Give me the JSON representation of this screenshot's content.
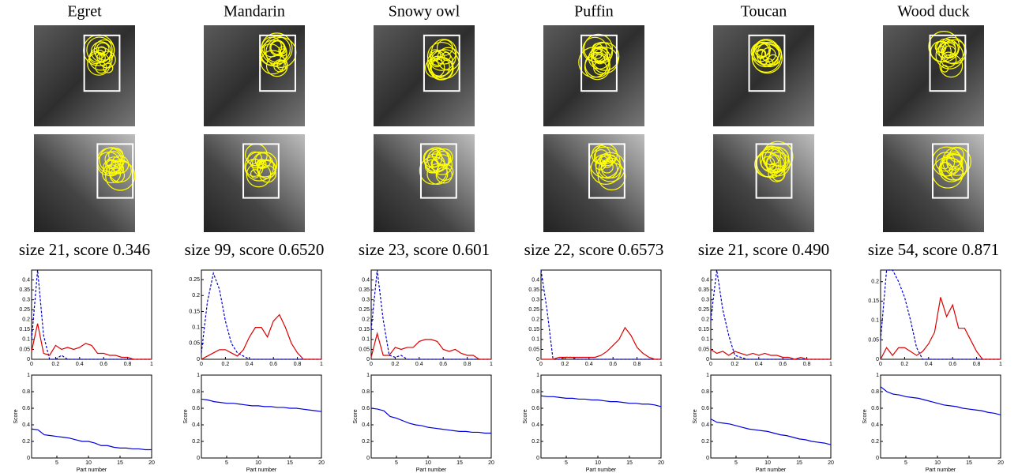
{
  "panels": [
    {
      "title": "Egret",
      "caption": "size 21, score 0.346"
    },
    {
      "title": "Mandarin",
      "caption": "size 99, score 0.6520"
    },
    {
      "title": "Snowy owl",
      "caption": "size 23, score 0.601"
    },
    {
      "title": "Puffin",
      "caption": "size 22, score 0.6573"
    },
    {
      "title": "Toucan",
      "caption": "size 21, score 0.490"
    },
    {
      "title": "Wood duck",
      "caption": "size 54, score 0.871"
    }
  ],
  "chart_data": [
    {
      "type": "line",
      "x": [
        0,
        0.05,
        0.1,
        0.15,
        0.2,
        0.25,
        0.3,
        0.35,
        0.4,
        0.45,
        0.5,
        0.55,
        0.6,
        0.65,
        0.7,
        0.75,
        0.8,
        0.85,
        0.9,
        0.95,
        1
      ],
      "xlim": [
        0,
        1
      ],
      "xticks": [
        0,
        0.2,
        0.4,
        0.6,
        0.8,
        1
      ],
      "ylim": [
        0,
        0.45
      ],
      "yticks": [
        0,
        0.05,
        0.1,
        0.15,
        0.2,
        0.25,
        0.3,
        0.35,
        0.4
      ],
      "series": [
        {
          "color": "#0000cc",
          "dash": true,
          "values": [
            0.1,
            0.45,
            0.12,
            0,
            0,
            0.02,
            0,
            0,
            0,
            0,
            0,
            0,
            0,
            0,
            0,
            0,
            0,
            0,
            0,
            0,
            0
          ]
        },
        {
          "color": "#dd0000",
          "values": [
            0.04,
            0.18,
            0.03,
            0.02,
            0.07,
            0.05,
            0.06,
            0.05,
            0.06,
            0.08,
            0.07,
            0.03,
            0.03,
            0.02,
            0.02,
            0.01,
            0.01,
            0,
            0,
            0,
            0
          ]
        }
      ]
    },
    {
      "type": "line",
      "x": [
        1,
        2,
        3,
        4,
        5,
        6,
        7,
        8,
        9,
        10,
        11,
        12,
        13,
        14,
        15,
        16,
        17,
        18,
        19,
        20
      ],
      "xlim": [
        1,
        20
      ],
      "xticks": [
        5,
        10,
        15,
        20
      ],
      "ylim": [
        0,
        1
      ],
      "yticks": [
        0,
        0.2,
        0.4,
        0.6,
        0.8,
        1
      ],
      "x_label": "Part number",
      "y_label": "Score",
      "series": [
        {
          "color": "#0000dd",
          "values": [
            0.35,
            0.34,
            0.28,
            0.27,
            0.26,
            0.25,
            0.24,
            0.22,
            0.2,
            0.2,
            0.18,
            0.15,
            0.15,
            0.13,
            0.12,
            0.12,
            0.11,
            0.11,
            0.1,
            0.1
          ]
        }
      ]
    },
    {
      "type": "line",
      "x": [
        0,
        0.05,
        0.1,
        0.15,
        0.2,
        0.25,
        0.3,
        0.35,
        0.4,
        0.45,
        0.5,
        0.55,
        0.6,
        0.65,
        0.7,
        0.75,
        0.8,
        0.85,
        0.9,
        0.95,
        1
      ],
      "xlim": [
        0,
        1
      ],
      "xticks": [
        0,
        0.2,
        0.4,
        0.6,
        0.8,
        1
      ],
      "ylim": [
        0,
        0.28
      ],
      "yticks": [
        0,
        0.05,
        0.1,
        0.15,
        0.2,
        0.25
      ],
      "series": [
        {
          "color": "#0000cc",
          "dash": true,
          "values": [
            0.02,
            0.18,
            0.27,
            0.22,
            0.12,
            0.05,
            0.02,
            0.01,
            0,
            0,
            0,
            0,
            0,
            0,
            0,
            0,
            0,
            0,
            0,
            0,
            0
          ]
        },
        {
          "color": "#dd0000",
          "values": [
            0,
            0.01,
            0.02,
            0.03,
            0.03,
            0.02,
            0.01,
            0.03,
            0.07,
            0.1,
            0.1,
            0.07,
            0.12,
            0.14,
            0.1,
            0.05,
            0.02,
            0,
            0,
            0,
            0
          ]
        }
      ]
    },
    {
      "type": "line",
      "x": [
        1,
        2,
        3,
        4,
        5,
        6,
        7,
        8,
        9,
        10,
        11,
        12,
        13,
        14,
        15,
        16,
        17,
        18,
        19,
        20
      ],
      "xlim": [
        1,
        20
      ],
      "xticks": [
        5,
        10,
        15,
        20
      ],
      "ylim": [
        0,
        1
      ],
      "yticks": [
        0,
        0.2,
        0.4,
        0.6,
        0.8,
        1
      ],
      "x_label": "Part number",
      "y_label": "Score",
      "series": [
        {
          "color": "#0000dd",
          "values": [
            0.71,
            0.7,
            0.68,
            0.67,
            0.66,
            0.66,
            0.65,
            0.64,
            0.63,
            0.63,
            0.62,
            0.62,
            0.61,
            0.61,
            0.6,
            0.6,
            0.59,
            0.58,
            0.57,
            0.56
          ]
        }
      ]
    },
    {
      "type": "line",
      "x": [
        0,
        0.05,
        0.1,
        0.15,
        0.2,
        0.25,
        0.3,
        0.35,
        0.4,
        0.45,
        0.5,
        0.55,
        0.6,
        0.65,
        0.7,
        0.75,
        0.8,
        0.85,
        0.9,
        0.95,
        1
      ],
      "xlim": [
        0,
        1
      ],
      "xticks": [
        0,
        0.2,
        0.4,
        0.6,
        0.8,
        1
      ],
      "ylim": [
        0,
        0.45
      ],
      "yticks": [
        0,
        0.05,
        0.1,
        0.15,
        0.2,
        0.25,
        0.3,
        0.35,
        0.4
      ],
      "series": [
        {
          "color": "#0000cc",
          "dash": true,
          "values": [
            0.15,
            0.45,
            0.2,
            0.02,
            0.01,
            0.02,
            0,
            0,
            0,
            0,
            0,
            0,
            0,
            0,
            0,
            0,
            0,
            0,
            0,
            0,
            0
          ]
        },
        {
          "color": "#dd0000",
          "values": [
            0.01,
            0.13,
            0.02,
            0.02,
            0.06,
            0.05,
            0.06,
            0.06,
            0.09,
            0.1,
            0.1,
            0.09,
            0.05,
            0.04,
            0.05,
            0.03,
            0.02,
            0.02,
            0,
            0,
            0
          ]
        }
      ]
    },
    {
      "type": "line",
      "x": [
        1,
        2,
        3,
        4,
        5,
        6,
        7,
        8,
        9,
        10,
        11,
        12,
        13,
        14,
        15,
        16,
        17,
        18,
        19,
        20
      ],
      "xlim": [
        1,
        20
      ],
      "xticks": [
        5,
        10,
        15,
        20
      ],
      "ylim": [
        0,
        1
      ],
      "yticks": [
        0,
        0.2,
        0.4,
        0.6,
        0.8,
        1
      ],
      "x_label": "Part number",
      "y_label": "Score",
      "series": [
        {
          "color": "#0000dd",
          "values": [
            0.6,
            0.59,
            0.57,
            0.5,
            0.48,
            0.45,
            0.42,
            0.4,
            0.39,
            0.37,
            0.36,
            0.35,
            0.34,
            0.33,
            0.32,
            0.32,
            0.31,
            0.31,
            0.3,
            0.3
          ]
        }
      ]
    },
    {
      "type": "line",
      "x": [
        0,
        0.05,
        0.1,
        0.15,
        0.2,
        0.25,
        0.3,
        0.35,
        0.4,
        0.45,
        0.5,
        0.55,
        0.6,
        0.65,
        0.7,
        0.75,
        0.8,
        0.85,
        0.9,
        0.95,
        1
      ],
      "xlim": [
        0,
        1
      ],
      "xticks": [
        0,
        0.2,
        0.4,
        0.6,
        0.8,
        1
      ],
      "ylim": [
        0,
        0.45
      ],
      "yticks": [
        0,
        0.05,
        0.1,
        0.15,
        0.2,
        0.25,
        0.3,
        0.35,
        0.4
      ],
      "series": [
        {
          "color": "#0000cc",
          "dash": true,
          "values": [
            0.45,
            0.25,
            0,
            0,
            0.01,
            0.01,
            0,
            0,
            0,
            0,
            0,
            0,
            0,
            0,
            0,
            0,
            0,
            0,
            0,
            0,
            0
          ]
        },
        {
          "color": "#dd0000",
          "values": [
            0,
            0,
            0,
            0.01,
            0.01,
            0.01,
            0.01,
            0.01,
            0.01,
            0.01,
            0.02,
            0.04,
            0.07,
            0.1,
            0.16,
            0.12,
            0.06,
            0.03,
            0.01,
            0,
            0
          ]
        }
      ]
    },
    {
      "type": "line",
      "x": [
        1,
        2,
        3,
        4,
        5,
        6,
        7,
        8,
        9,
        10,
        11,
        12,
        13,
        14,
        15,
        16,
        17,
        18,
        19,
        20
      ],
      "xlim": [
        1,
        20
      ],
      "xticks": [
        5,
        10,
        15,
        20
      ],
      "ylim": [
        0,
        1
      ],
      "yticks": [
        0,
        0.2,
        0.4,
        0.6,
        0.8,
        1
      ],
      "x_label": "Part number",
      "y_label": "Score",
      "series": [
        {
          "color": "#0000dd",
          "values": [
            0.75,
            0.74,
            0.74,
            0.73,
            0.72,
            0.72,
            0.71,
            0.71,
            0.7,
            0.7,
            0.69,
            0.68,
            0.68,
            0.67,
            0.66,
            0.66,
            0.65,
            0.65,
            0.64,
            0.62
          ]
        }
      ]
    },
    {
      "type": "line",
      "x": [
        0,
        0.05,
        0.1,
        0.15,
        0.2,
        0.25,
        0.3,
        0.35,
        0.4,
        0.45,
        0.5,
        0.55,
        0.6,
        0.65,
        0.7,
        0.75,
        0.8,
        0.85,
        0.9,
        0.95,
        1
      ],
      "xlim": [
        0,
        1
      ],
      "xticks": [
        0,
        0.2,
        0.4,
        0.6,
        0.8,
        1
      ],
      "ylim": [
        0,
        0.45
      ],
      "yticks": [
        0,
        0.05,
        0.1,
        0.15,
        0.2,
        0.25,
        0.3,
        0.35,
        0.4
      ],
      "series": [
        {
          "color": "#0000cc",
          "dash": true,
          "values": [
            0.2,
            0.45,
            0.25,
            0.12,
            0.02,
            0.01,
            0,
            0,
            0,
            0,
            0,
            0,
            0,
            0,
            0,
            0,
            0,
            0,
            0,
            0,
            0
          ]
        },
        {
          "color": "#dd0000",
          "values": [
            0.05,
            0.03,
            0.04,
            0.02,
            0.04,
            0.03,
            0.02,
            0.03,
            0.02,
            0.03,
            0.02,
            0.02,
            0.01,
            0.01,
            0,
            0.01,
            0,
            0,
            0,
            0,
            0
          ]
        }
      ]
    },
    {
      "type": "line",
      "x": [
        1,
        2,
        3,
        4,
        5,
        6,
        7,
        8,
        9,
        10,
        11,
        12,
        13,
        14,
        15,
        16,
        17,
        18,
        19,
        20
      ],
      "xlim": [
        1,
        20
      ],
      "xticks": [
        5,
        10,
        15,
        20
      ],
      "ylim": [
        0,
        1
      ],
      "yticks": [
        0,
        0.2,
        0.4,
        0.6,
        0.8,
        1
      ],
      "x_label": "Part number",
      "y_label": "Score",
      "series": [
        {
          "color": "#0000dd",
          "values": [
            0.47,
            0.43,
            0.42,
            0.41,
            0.39,
            0.37,
            0.35,
            0.34,
            0.33,
            0.32,
            0.3,
            0.28,
            0.27,
            0.25,
            0.23,
            0.22,
            0.2,
            0.19,
            0.18,
            0.16
          ]
        }
      ]
    },
    {
      "type": "line",
      "x": [
        0,
        0.05,
        0.1,
        0.15,
        0.2,
        0.25,
        0.3,
        0.35,
        0.4,
        0.45,
        0.5,
        0.55,
        0.6,
        0.65,
        0.7,
        0.75,
        0.8,
        0.85,
        0.9,
        0.95,
        1
      ],
      "xlim": [
        0,
        1
      ],
      "xticks": [
        0,
        0.2,
        0.4,
        0.6,
        0.8,
        1
      ],
      "ylim": [
        0,
        0.23
      ],
      "yticks": [
        0,
        0.05,
        0.1,
        0.15,
        0.2
      ],
      "series": [
        {
          "color": "#0000cc",
          "dash": true,
          "values": [
            0.05,
            0.23,
            0.23,
            0.2,
            0.16,
            0.1,
            0.03,
            0,
            0,
            0,
            0,
            0,
            0,
            0,
            0,
            0,
            0,
            0,
            0,
            0,
            0
          ]
        },
        {
          "color": "#dd0000",
          "values": [
            0,
            0.03,
            0.01,
            0.03,
            0.03,
            0.02,
            0.01,
            0.02,
            0.04,
            0.07,
            0.16,
            0.11,
            0.14,
            0.08,
            0.08,
            0.05,
            0.02,
            0,
            0,
            0,
            0
          ]
        }
      ]
    },
    {
      "type": "line",
      "x": [
        1,
        2,
        3,
        4,
        5,
        6,
        7,
        8,
        9,
        10,
        11,
        12,
        13,
        14,
        15,
        16,
        17,
        18,
        19,
        20
      ],
      "xlim": [
        1,
        20
      ],
      "xticks": [
        5,
        10,
        15,
        20
      ],
      "ylim": [
        0,
        1
      ],
      "yticks": [
        0,
        0.2,
        0.4,
        0.6,
        0.8,
        1
      ],
      "x_label": "Part number",
      "y_label": "Score",
      "series": [
        {
          "color": "#0000dd",
          "values": [
            0.86,
            0.8,
            0.77,
            0.76,
            0.74,
            0.73,
            0.72,
            0.7,
            0.68,
            0.66,
            0.64,
            0.63,
            0.62,
            0.6,
            0.59,
            0.58,
            0.57,
            0.55,
            0.54,
            0.52
          ]
        }
      ]
    }
  ]
}
